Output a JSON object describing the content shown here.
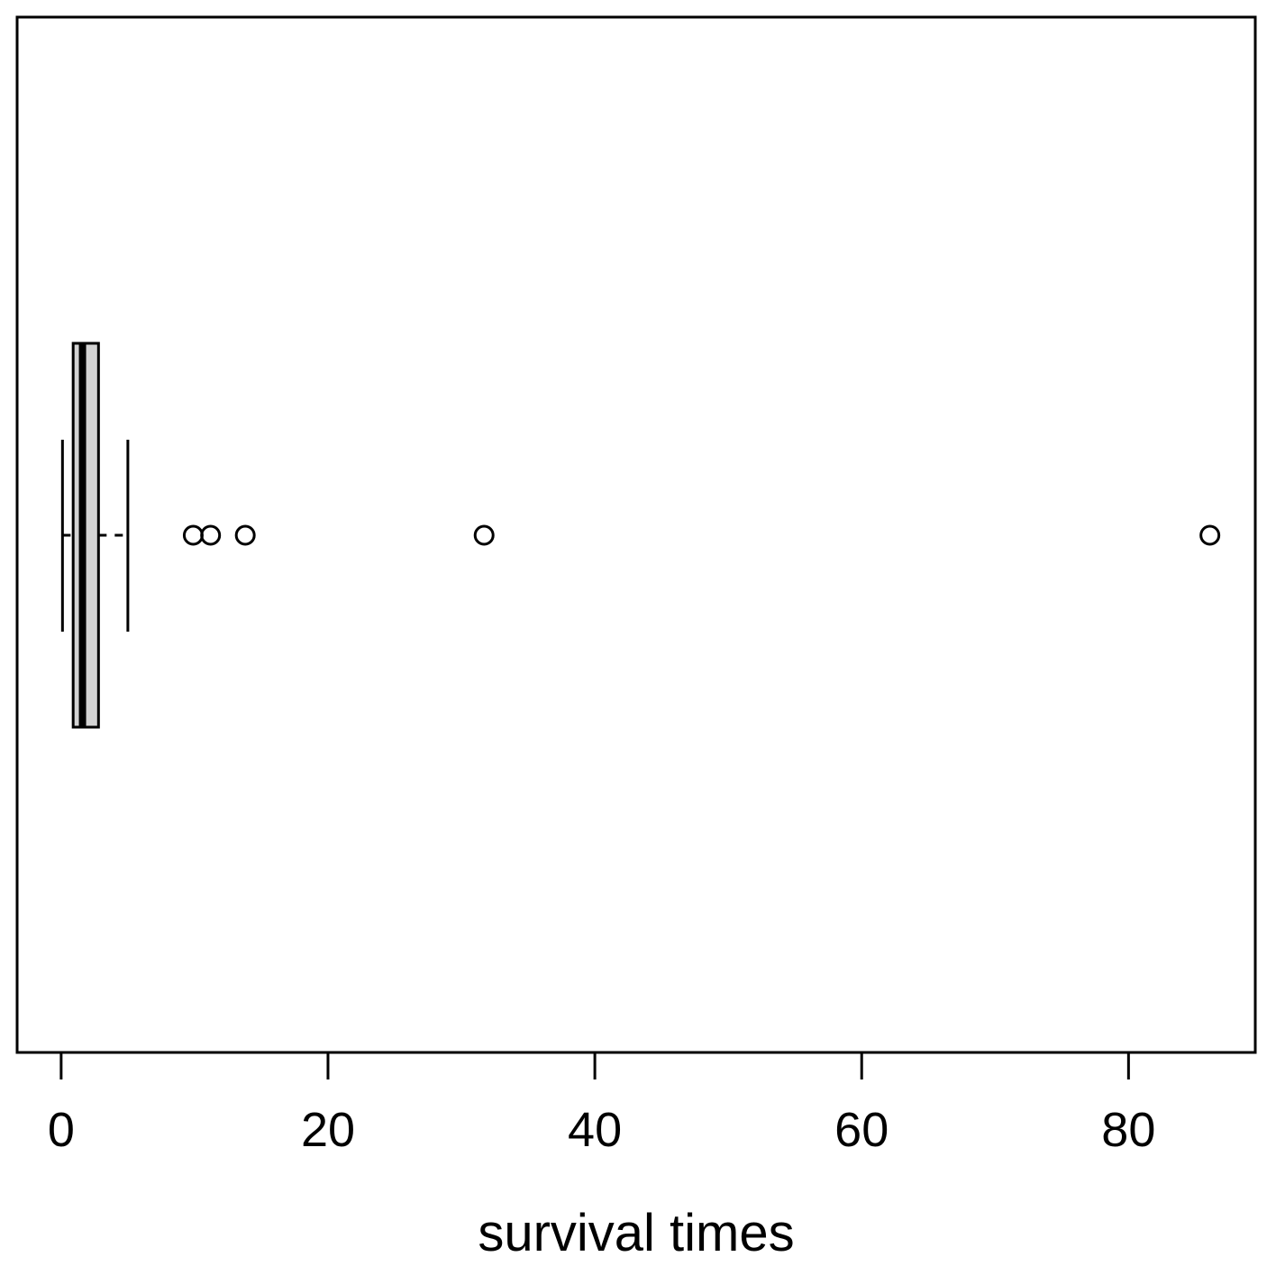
{
  "chart_data": {
    "type": "boxplot",
    "orientation": "horizontal",
    "title": "",
    "xlabel": "survival times",
    "ylabel": "",
    "xlim": [
      -3.3,
      89.5
    ],
    "x_ticks": [
      0,
      20,
      40,
      60,
      80
    ],
    "x_tick_labels": [
      "0",
      "20",
      "40",
      "60",
      "80"
    ],
    "grid": false,
    "legend": "none",
    "box": {
      "whisker_low": 0.1,
      "q1": 0.9,
      "median": 1.6,
      "q3": 2.8,
      "whisker_high": 5.0,
      "outliers": [
        9.9,
        11.2,
        13.8,
        31.7,
        86.1
      ]
    },
    "colors": {
      "box_fill": "#d3d3d3",
      "line": "#000000",
      "background": "#ffffff"
    }
  }
}
